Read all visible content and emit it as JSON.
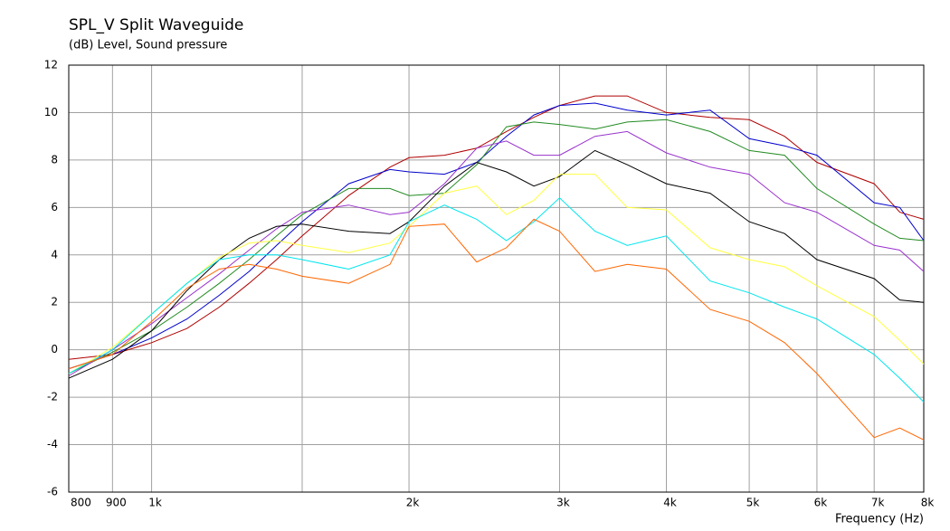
{
  "chart_data": {
    "type": "line",
    "title": "SPL_V Split Waveguide",
    "subtitle": "(dB)  Level, Sound pressure",
    "xlabel": "Frequency  (Hz)",
    "xscale": "log",
    "x": [
      800,
      900,
      1000,
      1100,
      1200,
      1300,
      1400,
      1500,
      1700,
      1900,
      2000,
      2200,
      2400,
      2600,
      2800,
      3000,
      3300,
      3600,
      4000,
      4500,
      5000,
      5500,
      6000,
      7000,
      7500,
      8000
    ],
    "xlim": [
      800,
      8000
    ],
    "xticks": [
      800,
      900,
      {
        "value": 1000,
        "label": "1k"
      },
      {
        "value": 2000,
        "label": "2k"
      },
      {
        "value": 3000,
        "label": "3k"
      },
      {
        "value": 4000,
        "label": "4k"
      },
      {
        "value": 5000,
        "label": "5k"
      },
      {
        "value": 6000,
        "label": "6k"
      },
      {
        "value": 7000,
        "label": "7k"
      },
      {
        "value": 8000,
        "label": "8k"
      }
    ],
    "xgrid_extra": [
      1500
    ],
    "ylim": [
      -6,
      12
    ],
    "yticks": [
      -6,
      -4,
      -2,
      0,
      2,
      4,
      6,
      8,
      10,
      12
    ],
    "grid": true,
    "series": [
      {
        "color": "#b00000",
        "values": [
          -0.4,
          -0.2,
          0.3,
          0.9,
          1.8,
          2.8,
          3.8,
          4.8,
          6.5,
          7.7,
          8.1,
          8.2,
          8.5,
          9.2,
          9.8,
          10.3,
          10.7,
          10.7,
          10.0,
          9.8,
          9.7,
          9.0,
          7.9,
          7.0,
          5.8,
          5.5
        ]
      },
      {
        "color": "#0000cc",
        "values": [
          -0.8,
          -0.2,
          0.5,
          1.3,
          2.3,
          3.3,
          4.4,
          5.4,
          7.0,
          7.6,
          7.5,
          7.4,
          7.9,
          9.0,
          9.9,
          10.3,
          10.4,
          10.1,
          9.9,
          10.1,
          8.9,
          8.6,
          8.2,
          6.2,
          6.0,
          4.6
        ]
      },
      {
        "color": "#228b22",
        "values": [
          -1.0,
          -0.1,
          0.8,
          1.8,
          2.8,
          3.8,
          4.8,
          5.7,
          6.8,
          6.8,
          6.5,
          6.6,
          7.8,
          9.4,
          9.6,
          9.5,
          9.3,
          9.6,
          9.7,
          9.2,
          8.4,
          8.2,
          6.8,
          5.3,
          4.7,
          4.6
        ]
      },
      {
        "color": "#9932cc",
        "values": [
          -1.1,
          0.0,
          1.1,
          2.2,
          3.2,
          4.2,
          5.1,
          5.8,
          6.1,
          5.7,
          5.8,
          7.0,
          8.5,
          8.8,
          8.2,
          8.2,
          9.0,
          9.2,
          8.3,
          7.7,
          7.4,
          6.2,
          5.8,
          4.4,
          4.2,
          3.3
        ]
      },
      {
        "color": "#000000",
        "values": [
          -1.2,
          -0.4,
          0.8,
          2.5,
          3.8,
          4.7,
          5.2,
          5.3,
          5.0,
          4.9,
          5.4,
          6.9,
          7.9,
          7.5,
          6.9,
          7.3,
          8.4,
          7.8,
          7.0,
          6.6,
          5.4,
          4.9,
          3.8,
          3.0,
          2.1,
          2.0
        ]
      },
      {
        "color": "#ffff40",
        "values": [
          -1.0,
          0.1,
          1.5,
          2.8,
          3.9,
          4.5,
          4.6,
          4.4,
          4.1,
          4.5,
          5.2,
          6.6,
          6.9,
          5.7,
          6.3,
          7.4,
          7.4,
          6.0,
          5.9,
          4.3,
          3.8,
          3.5,
          2.7,
          1.4,
          0.4,
          -0.6
        ]
      },
      {
        "color": "#00e5ee",
        "values": [
          -1.0,
          0.0,
          1.5,
          2.8,
          3.8,
          4.0,
          4.0,
          3.8,
          3.4,
          4.0,
          5.4,
          6.1,
          5.5,
          4.6,
          5.4,
          6.4,
          5.0,
          4.4,
          4.8,
          2.9,
          2.4,
          1.8,
          1.3,
          -0.2,
          -1.2,
          -2.2
        ]
      },
      {
        "color": "#ff6600",
        "values": [
          -0.8,
          -0.2,
          1.2,
          2.6,
          3.4,
          3.6,
          3.4,
          3.1,
          2.8,
          3.6,
          5.2,
          5.3,
          3.7,
          4.3,
          5.5,
          5.0,
          3.3,
          3.6,
          3.4,
          1.7,
          1.2,
          0.3,
          -1.0,
          -3.7,
          -3.3,
          -3.8
        ]
      }
    ]
  }
}
